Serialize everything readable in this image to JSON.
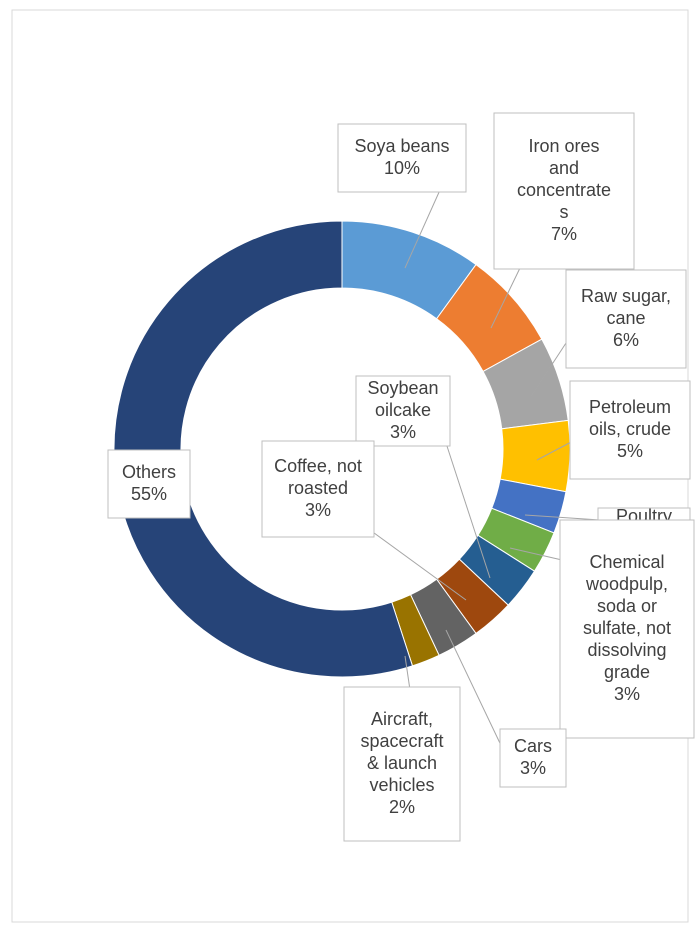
{
  "chart_data": {
    "type": "pie",
    "variant": "doughnut",
    "title": "",
    "slices": [
      {
        "label": "Soya beans",
        "value": 10,
        "display": "10%",
        "color": "#5B9BD5",
        "label_lines": [
          "Soya beans",
          "10%"
        ]
      },
      {
        "label": "Iron ores and concentrates",
        "value": 7,
        "display": "7%",
        "color": "#ED7D31",
        "label_lines": [
          "Iron ores",
          "and",
          "concentrate",
          "s",
          "7%"
        ]
      },
      {
        "label": "Raw sugar, cane",
        "value": 6,
        "display": "6%",
        "color": "#A5A5A5",
        "label_lines": [
          "Raw sugar,",
          "cane",
          "6%"
        ]
      },
      {
        "label": "Petroleum oils, crude",
        "value": 5,
        "display": "5%",
        "color": "#FFC000",
        "label_lines": [
          "Petroleum",
          "oils, crude",
          "5%"
        ]
      },
      {
        "label": "Poultry",
        "value": 3,
        "display": "3%",
        "color": "#4472C4",
        "label_lines": [
          "Poultry",
          "3%"
        ]
      },
      {
        "label": "Chemical woodpulp, soda or sulfate, not dissolving grade",
        "value": 3,
        "display": "3%",
        "color": "#70AD47",
        "label_lines": [
          "Chemical",
          "woodpulp,",
          "soda or",
          "sulfate, not",
          "dissolving",
          "grade",
          "3%"
        ]
      },
      {
        "label": "Soybean oilcake",
        "value": 3,
        "display": "3%",
        "color": "#255E91",
        "label_lines": [
          "Soybean",
          "oilcake",
          "3%"
        ]
      },
      {
        "label": "Coffee, not roasted",
        "value": 3,
        "display": "3%",
        "color": "#9E480E",
        "label_lines": [
          "Coffee, not",
          "roasted",
          "3%"
        ]
      },
      {
        "label": "Cars",
        "value": 3,
        "display": "3%",
        "color": "#636363",
        "label_lines": [
          "Cars",
          "3%"
        ]
      },
      {
        "label": "Aircraft, spacecraft & launch vehicles",
        "value": 2,
        "display": "2%",
        "color": "#997300",
        "label_lines": [
          "Aircraft,",
          "spacecraft",
          "& launch",
          "vehicles",
          "2%"
        ]
      },
      {
        "label": "Others",
        "value": 55,
        "display": "55%",
        "color": "#264478",
        "label_lines": [
          "Others",
          "55%"
        ]
      }
    ],
    "legend": "none",
    "grid": false
  }
}
